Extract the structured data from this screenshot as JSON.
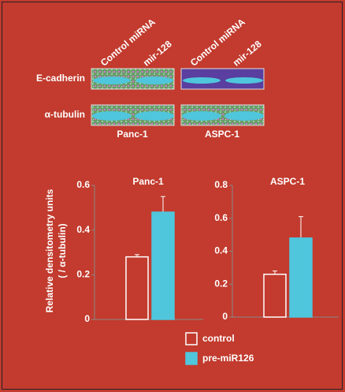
{
  "blot": {
    "lanes": [
      "Control miRNA",
      "mir-128",
      "Control miRNA",
      "mir-128"
    ],
    "rows": [
      "E-cadherin",
      "α-tubulin"
    ],
    "cells": [
      "Panc-1",
      "ASPC-1"
    ]
  },
  "chart_data": [
    {
      "type": "bar",
      "title": "Panc-1",
      "ylabel": [
        "Relative densitometry units",
        "( / α-tubulin)"
      ],
      "ylim": [
        0,
        0.6
      ],
      "yticks": [
        0,
        0.2,
        0.4,
        0.6
      ],
      "series": [
        {
          "name": "control",
          "color": "#ffffff",
          "values": [
            0.28
          ],
          "errors": [
            0.01
          ]
        },
        {
          "name": "pre-miR126",
          "color": "#4fc6dc",
          "values": [
            0.48
          ],
          "errors": [
            0.07
          ]
        }
      ]
    },
    {
      "type": "bar",
      "title": "ASPC-1",
      "ylim": [
        0,
        0.8
      ],
      "yticks": [
        0,
        0.2,
        0.4,
        0.6,
        0.8
      ],
      "series": [
        {
          "name": "control",
          "color": "#ffffff",
          "values": [
            0.26
          ],
          "errors": [
            0.02
          ]
        },
        {
          "name": "pre-miR126",
          "color": "#4fc6dc",
          "values": [
            0.48
          ],
          "errors": [
            0.13
          ]
        }
      ]
    }
  ]
}
